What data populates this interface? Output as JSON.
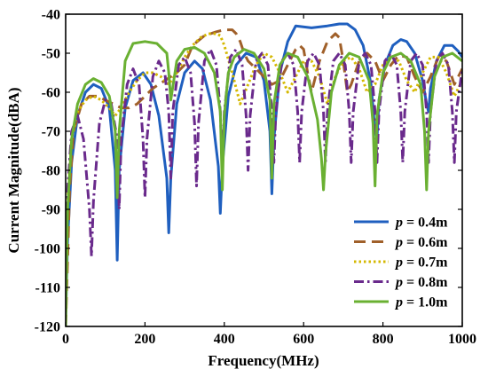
{
  "chart_data": {
    "type": "line",
    "title": "",
    "xlabel": "Frequency(MHz)",
    "ylabel": "Current Magnitude(dBA)",
    "xlim": [
      0,
      1000
    ],
    "ylim": [
      -120,
      -40
    ],
    "xticks": [
      0,
      200,
      400,
      600,
      800,
      1000
    ],
    "yticks": [
      -120,
      -110,
      -100,
      -90,
      -80,
      -70,
      -60,
      -50,
      -40
    ],
    "grid": false,
    "legend_position": "lower-right",
    "series": [
      {
        "name": "p = 0.4m",
        "legend_prefix": "p",
        "legend_suffix": " = 0.4m",
        "color": "#1f5fbf",
        "style": "solid",
        "x": [
          0,
          5,
          15,
          30,
          50,
          70,
          90,
          110,
          125,
          130,
          135,
          150,
          170,
          195,
          215,
          235,
          255,
          260,
          265,
          280,
          300,
          325,
          345,
          365,
          385,
          390,
          395,
          410,
          430,
          455,
          480,
          500,
          515,
          520,
          525,
          540,
          560,
          580,
          620,
          660,
          690,
          710,
          730,
          750,
          770,
          780,
          785,
          790,
          805,
          825,
          845,
          860,
          880,
          900,
          910,
          915,
          920,
          935,
          955,
          975,
          990,
          1000
        ],
        "y": [
          -118,
          -98,
          -78,
          -66,
          -60,
          -58,
          -59,
          -64,
          -80,
          -103,
          -80,
          -64,
          -57,
          -55,
          -58,
          -66,
          -82,
          -96,
          -82,
          -63,
          -55,
          -52,
          -54,
          -62,
          -79,
          -91,
          -79,
          -61,
          -53,
          -50,
          -51,
          -57,
          -70,
          -86,
          -72,
          -55,
          -47,
          -43,
          -43.5,
          -43,
          -42.5,
          -42.5,
          -44,
          -48,
          -58,
          -70,
          -72,
          -62,
          -53,
          -48,
          -46.5,
          -47,
          -50,
          -57,
          -63,
          -65,
          -59,
          -52,
          -48,
          -48,
          -49.5,
          -51
        ]
      },
      {
        "name": "p = 0.6m",
        "legend_prefix": "p",
        "legend_suffix": " = 0.6m",
        "color": "#a0602a",
        "style": "dashed",
        "x": [
          0,
          10,
          20,
          40,
          60,
          80,
          100,
          120,
          140,
          160,
          180,
          200,
          220,
          250,
          280,
          300,
          320,
          350,
          380,
          400,
          420,
          430,
          440,
          450,
          460,
          480,
          500,
          520,
          540,
          560,
          580,
          590,
          600,
          610,
          620,
          640,
          660,
          680,
          690,
          700,
          710,
          720,
          740,
          760,
          780,
          800,
          820,
          840,
          860,
          880,
          900,
          920,
          940,
          960,
          980,
          1000
        ],
        "y": [
          -120,
          -85,
          -70,
          -63,
          -61,
          -61,
          -62,
          -63,
          -64,
          -64,
          -63,
          -61,
          -59,
          -57,
          -55,
          -53,
          -48,
          -45.5,
          -44.5,
          -44,
          -44,
          -45,
          -47,
          -50,
          -52,
          -54,
          -56,
          -58,
          -57,
          -53,
          -49,
          -48,
          -49,
          -55,
          -60,
          -52,
          -47,
          -45,
          -46,
          -52,
          -60,
          -58,
          -52,
          -50,
          -52,
          -57,
          -53,
          -50.5,
          -51,
          -56,
          -60,
          -56,
          -51,
          -52,
          -58,
          -54
        ]
      },
      {
        "name": "p = 0.7m",
        "legend_prefix": "p",
        "legend_suffix": " = 0.7m",
        "color": "#d4b800",
        "style": "dotted",
        "x": [
          0,
          5,
          15,
          30,
          50,
          70,
          90,
          110,
          125,
          140,
          160,
          180,
          200,
          220,
          240,
          260,
          280,
          300,
          320,
          340,
          360,
          380,
          390,
          400,
          420,
          440,
          460,
          480,
          500,
          520,
          540,
          560,
          580,
          600,
          620,
          640,
          660,
          680,
          700,
          720,
          740,
          760,
          780,
          800,
          820,
          840,
          860,
          880,
          900,
          920,
          940,
          960,
          980,
          1000
        ],
        "y": [
          -120,
          -88,
          -72,
          -65,
          -62,
          -61,
          -62,
          -64,
          -66,
          -64,
          -60,
          -57,
          -55,
          -55,
          -56,
          -58,
          -55,
          -51,
          -48,
          -46,
          -45,
          -45,
          -45.5,
          -48,
          -55,
          -63,
          -58,
          -53,
          -50,
          -51,
          -55,
          -60,
          -56,
          -52,
          -52,
          -56,
          -63,
          -56,
          -52,
          -51,
          -54,
          -60,
          -58,
          -53,
          -51,
          -52,
          -57,
          -60,
          -55,
          -51,
          -51,
          -55,
          -61,
          -57
        ]
      },
      {
        "name": "p = 0.8m",
        "legend_prefix": "p",
        "legend_suffix": " = 0.8m",
        "color": "#6a2a8c",
        "style": "dashdot",
        "x": [
          0,
          5,
          15,
          30,
          45,
          60,
          65,
          70,
          85,
          100,
          115,
          130,
          135,
          140,
          155,
          170,
          185,
          195,
          200,
          205,
          220,
          235,
          250,
          260,
          265,
          270,
          285,
          300,
          315,
          325,
          330,
          335,
          350,
          365,
          380,
          390,
          395,
          400,
          415,
          430,
          445,
          455,
          460,
          465,
          480,
          495,
          510,
          520,
          525,
          530,
          545,
          560,
          575,
          585,
          590,
          595,
          610,
          625,
          640,
          650,
          655,
          660,
          675,
          690,
          705,
          715,
          720,
          725,
          740,
          755,
          770,
          780,
          785,
          790,
          805,
          820,
          835,
          845,
          850,
          855,
          870,
          885,
          900,
          910,
          915,
          920,
          935,
          950,
          965,
          975,
          980,
          985,
          1000
        ],
        "y": [
          -115,
          -85,
          -70,
          -66,
          -72,
          -90,
          -102,
          -88,
          -68,
          -62,
          -63,
          -72,
          -90,
          -72,
          -58,
          -54,
          -58,
          -72,
          -87,
          -72,
          -56,
          -52,
          -55,
          -65,
          -82,
          -65,
          -53,
          -51,
          -55,
          -68,
          -84,
          -68,
          -52,
          -49,
          -53,
          -65,
          -80,
          -65,
          -51,
          -49,
          -53,
          -66,
          -80,
          -66,
          -52,
          -50,
          -53,
          -65,
          -78,
          -65,
          -52,
          -50,
          -53,
          -65,
          -78,
          -65,
          -52,
          -50,
          -53,
          -65,
          -78,
          -65,
          -52,
          -50,
          -53,
          -65,
          -78,
          -65,
          -52,
          -50,
          -53,
          -65,
          -78,
          -65,
          -52,
          -50,
          -53,
          -65,
          -78,
          -65,
          -52,
          -50,
          -53,
          -65,
          -78,
          -65,
          -52,
          -50,
          -53,
          -65,
          -78,
          -65,
          -54
        ]
      },
      {
        "name": "p = 1.0m",
        "legend_prefix": "p",
        "legend_suffix": " = 1.0m",
        "color": "#6ab032",
        "style": "solid",
        "x": [
          0,
          5,
          15,
          30,
          50,
          70,
          90,
          110,
          125,
          130,
          135,
          150,
          170,
          200,
          230,
          255,
          260,
          265,
          280,
          300,
          325,
          350,
          375,
          390,
          395,
          400,
          410,
          425,
          450,
          475,
          500,
          515,
          520,
          525,
          540,
          560,
          585,
          610,
          635,
          645,
          650,
          655,
          670,
          690,
          715,
          740,
          765,
          775,
          780,
          785,
          800,
          820,
          845,
          870,
          895,
          905,
          910,
          915,
          930,
          950,
          975,
          1000
        ],
        "y": [
          -120,
          -90,
          -72,
          -63,
          -58,
          -56.5,
          -57.5,
          -61,
          -70,
          -87,
          -70,
          -52,
          -47.5,
          -47,
          -47.5,
          -50,
          -55,
          -62,
          -52,
          -49,
          -48.5,
          -50,
          -55,
          -65,
          -85,
          -66,
          -55,
          -51,
          -49,
          -50,
          -54,
          -62,
          -82,
          -63,
          -53,
          -50,
          -51,
          -56,
          -67,
          -77,
          -85,
          -76,
          -60,
          -53,
          -50,
          -51,
          -57,
          -68,
          -84,
          -66,
          -55,
          -51,
          -50,
          -52,
          -58,
          -70,
          -85,
          -70,
          -56,
          -51,
          -50,
          -52
        ]
      }
    ]
  }
}
